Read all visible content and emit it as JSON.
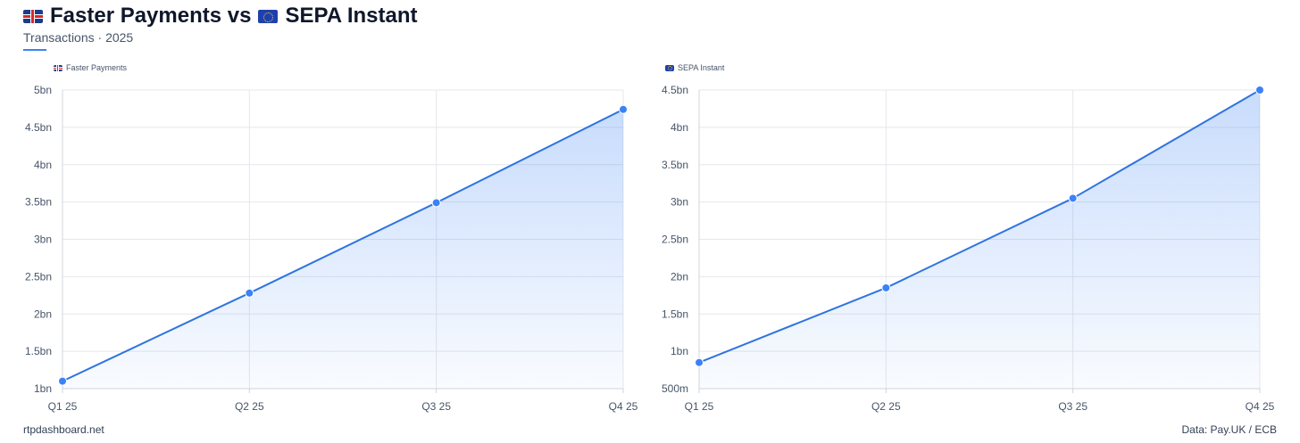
{
  "header": {
    "title_left": "Faster Payments vs",
    "title_right": "SEPA Instant",
    "subtitle": "Transactions · 2025"
  },
  "footer": {
    "left": "rtpdashboard.net",
    "right": "Data: Pay.UK / ECB"
  },
  "colors": {
    "line": "#2f74e0",
    "point": "#3b82f6",
    "fill": "#3b82f6",
    "grid": "#e5e7eb"
  },
  "chart_data": [
    {
      "type": "area",
      "title": "Faster Payments",
      "legend": "Faster Payments",
      "categories": [
        "Q1 25",
        "Q2 25",
        "Q3 25",
        "Q4 25"
      ],
      "series": [
        {
          "name": "Faster Payments",
          "values": [
            1.1,
            2.28,
            3.49,
            4.74
          ]
        }
      ],
      "ylim": [
        1,
        5
      ],
      "yticks": [
        1,
        1.5,
        2,
        2.5,
        3,
        3.5,
        4,
        4.5,
        5
      ],
      "ytick_labels": [
        "1bn",
        "1.5bn",
        "2bn",
        "2.5bn",
        "3bn",
        "3.5bn",
        "4bn",
        "4.5bn",
        "5bn"
      ],
      "unit": "bn",
      "grid": true
    },
    {
      "type": "area",
      "title": "SEPA Instant",
      "legend": "SEPA Instant",
      "categories": [
        "Q1 25",
        "Q2 25",
        "Q3 25",
        "Q4 25"
      ],
      "series": [
        {
          "name": "SEPA Instant",
          "values": [
            0.85,
            1.85,
            3.05,
            4.5
          ]
        }
      ],
      "ylim": [
        0.5,
        4.5
      ],
      "yticks": [
        0.5,
        1,
        1.5,
        2,
        2.5,
        3,
        3.5,
        4,
        4.5
      ],
      "ytick_labels": [
        "500m",
        "1bn",
        "1.5bn",
        "2bn",
        "2.5bn",
        "3bn",
        "3.5bn",
        "4bn",
        "4.5bn"
      ],
      "unit": "bn",
      "grid": true
    }
  ]
}
